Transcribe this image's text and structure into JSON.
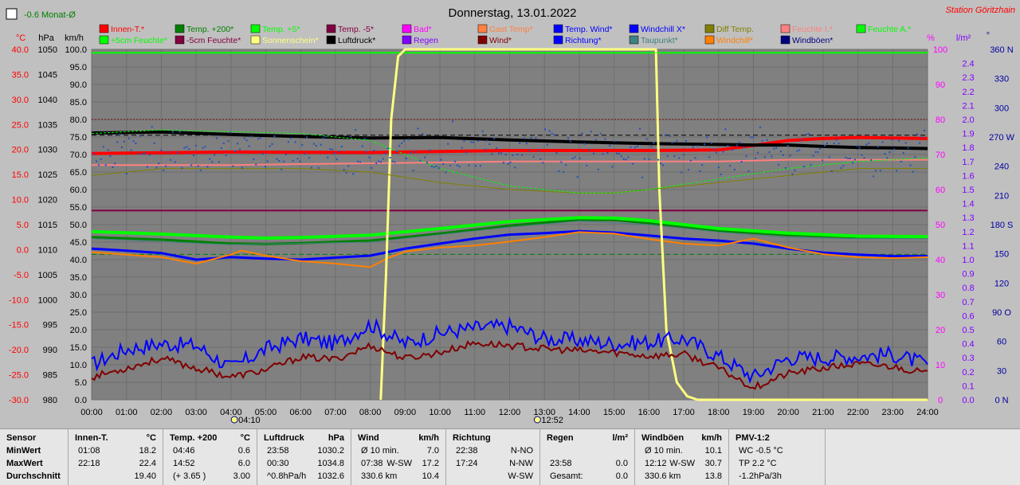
{
  "title": "Donnerstag, 13.01.2022",
  "station": "Station Göritzhain",
  "trend": "-0.6 Monat-Ø",
  "units": {
    "c": "°C",
    "hpa": "hPa",
    "kmh": "km/h",
    "pct": "%",
    "lm2": "l/m²",
    "deg": "°"
  },
  "legend": [
    [
      {
        "name": "Innen-T.*",
        "color": "#ff0000"
      },
      {
        "name": "Temp. +200*",
        "color": "#008000"
      },
      {
        "name": "Temp. +5*",
        "color": "#00ff00"
      },
      {
        "name": "Temp. -5*",
        "color": "#800040"
      },
      {
        "name": "Bad*",
        "color": "#ff00ff"
      },
      {
        "name": "Gast Temp*",
        "color": "#ff8040"
      },
      {
        "name": "Temp. Wind*",
        "color": "#0000ff"
      },
      {
        "name": "Windchill X*",
        "color": "#0000ff"
      },
      {
        "name": "Diff Temp.",
        "color": "#808000"
      },
      {
        "name": "Feuchte I.*",
        "color": "#ff8080"
      },
      {
        "name": "Feuchte A.*",
        "color": "#00ff00"
      }
    ],
    [
      {
        "name": "+5cm Feuchte*",
        "color": "#00ff00"
      },
      {
        "name": "-5cm Feuchte*",
        "color": "#800040"
      },
      {
        "name": "Sonnenschein*",
        "color": "#ffff80"
      },
      {
        "name": "Luftdruck*",
        "color": "#000000"
      },
      {
        "name": "Regen",
        "color": "#8000ff"
      },
      {
        "name": "Wind*",
        "color": "#800000"
      },
      {
        "name": "Richtung*",
        "color": "#0000ff"
      },
      {
        "name": "Taupunkt*",
        "color": "#408080"
      },
      {
        "name": "Windchill*",
        "color": "#ff8000"
      },
      {
        "name": "Windböen*",
        "color": "#000080"
      }
    ]
  ],
  "chart_data": {
    "type": "line",
    "title": "Donnerstag, 13.01.2022",
    "x_ticks": [
      "00:00",
      "01:00",
      "02:00",
      "03:00",
      "04:00",
      "05:00",
      "06:00",
      "07:00",
      "08:00",
      "09:00",
      "10:00",
      "11:00",
      "12:00",
      "13:00",
      "14:00",
      "15:00",
      "16:00",
      "17:00",
      "18:00",
      "19:00",
      "20:00",
      "21:00",
      "22:00",
      "23:00",
      "24:00"
    ],
    "x_markers": [
      "04:10",
      "12:52"
    ],
    "axes": {
      "temp_c": {
        "color": "#ff0000",
        "range": [
          -30,
          40
        ],
        "ticks": [
          "40.0",
          "35.0",
          "30.0",
          "25.0",
          "20.0",
          "15.0",
          "10.0",
          "5.0",
          "0.0",
          "-5.0",
          "-10.0",
          "-15.0",
          "-20.0",
          "-25.0",
          "-30.0"
        ]
      },
      "pressure_hpa": {
        "color": "#000000",
        "range": [
          980,
          1050
        ],
        "ticks": [
          "1050",
          "1045",
          "1040",
          "1035",
          "1030",
          "1025",
          "1020",
          "1015",
          "1010",
          "1005",
          "1000",
          "995",
          "990",
          "985",
          "980"
        ]
      },
      "wind_kmh": {
        "color": "#000000",
        "range": [
          0,
          100
        ],
        "ticks": [
          "100.0",
          "95.0",
          "90.0",
          "85.0",
          "80.0",
          "75.0",
          "70.0",
          "65.0",
          "60.0",
          "55.0",
          "50.0",
          "45.0",
          "40.0",
          "35.0",
          "30.0",
          "25.0",
          "20.0",
          "15.0",
          "10.0",
          "5.0",
          "0.0"
        ]
      },
      "humidity_pct": {
        "color": "#ff00ff",
        "range": [
          0,
          100
        ],
        "ticks": [
          "100",
          "90",
          "80",
          "70",
          "60",
          "50",
          "40",
          "30",
          "20",
          "10",
          "0"
        ]
      },
      "rain_lm2": {
        "color": "#8000ff",
        "range": [
          0,
          2.5
        ],
        "ticks": [
          "2.4",
          "2.3",
          "2.2",
          "2.1",
          "2.0",
          "1.9",
          "1.8",
          "1.7",
          "1.6",
          "1.5",
          "1.4",
          "1.3",
          "1.2",
          "1.1",
          "1.0",
          "0.9",
          "0.8",
          "0.7",
          "0.6",
          "0.5",
          "0.4",
          "0.3",
          "0.2",
          "0.1",
          "0.0"
        ]
      },
      "direction_deg": {
        "color": "#0000a0",
        "range": [
          0,
          360
        ],
        "ticks": [
          "360 N",
          "330",
          "300",
          "270 W",
          "240",
          "210",
          "180 S",
          "150",
          "120",
          "90 O",
          "60",
          "30",
          "0 N"
        ]
      }
    },
    "series": [
      {
        "name": "Innen-T.*",
        "axis": "temp_c",
        "color": "#ff0000",
        "width": 4,
        "x": [
          0,
          4,
          8,
          12,
          16,
          18,
          19,
          20,
          21,
          22,
          24
        ],
        "y": [
          19.2,
          19.5,
          19.4,
          19.8,
          19.8,
          19.9,
          20.8,
          21.8,
          22.2,
          22.4,
          22.2
        ]
      },
      {
        "name": "Temp. +200*",
        "axis": "temp_c",
        "color": "#008000",
        "width": 3,
        "x": [
          0,
          2,
          4,
          5,
          6,
          8,
          10,
          12,
          14,
          15,
          16,
          17,
          18,
          20,
          22,
          24
        ],
        "y": [
          2.5,
          2.0,
          1.2,
          1.1,
          1.3,
          1.8,
          3.2,
          4.8,
          6.0,
          5.9,
          5.3,
          4.6,
          3.8,
          2.9,
          2.5,
          2.5
        ]
      },
      {
        "name": "Temp. +5*",
        "axis": "temp_c",
        "color": "#00ff00",
        "width": 4,
        "x": [
          0,
          2,
          4,
          5,
          6,
          8,
          10,
          12,
          14,
          15,
          16,
          17,
          18,
          20,
          22,
          24
        ],
        "y": [
          3.6,
          3.1,
          2.5,
          2.3,
          2.4,
          2.9,
          4.2,
          5.6,
          6.4,
          6.3,
          5.8,
          5.0,
          4.2,
          3.3,
          2.7,
          2.6
        ]
      },
      {
        "name": "Temp. Wind*",
        "axis": "temp_c",
        "color": "#0000ff",
        "width": 3,
        "x": [
          0,
          1,
          2,
          3,
          4,
          5,
          6,
          7,
          8,
          9,
          10,
          11,
          12,
          13,
          14,
          15,
          16,
          17,
          18,
          19,
          20,
          21,
          22,
          23,
          24
        ],
        "y": [
          0.2,
          -0.2,
          -0.7,
          -2.0,
          -1.5,
          -1.8,
          -2.0,
          -1.6,
          -1.2,
          0.2,
          1.2,
          2.2,
          3.0,
          3.3,
          3.7,
          3.4,
          2.8,
          2.2,
          1.8,
          1.2,
          0.2,
          -0.6,
          -1.0,
          -1.3,
          -1.3
        ]
      },
      {
        "name": "Windchill*",
        "axis": "temp_c",
        "color": "#ff8000",
        "width": 2,
        "x": [
          0,
          1,
          2,
          3,
          4,
          4.3,
          5,
          6,
          7,
          8,
          8.5,
          9,
          10,
          11,
          12,
          13,
          14,
          15,
          16,
          17,
          18,
          19,
          20,
          21,
          22,
          23,
          24
        ],
        "y": [
          -0.5,
          -1.0,
          -1.5,
          -2.8,
          -1.0,
          -0.2,
          -1.2,
          -2.3,
          -2.8,
          -3.5,
          -1.7,
          -0.4,
          0.4,
          0.8,
          1.6,
          2.5,
          3.5,
          3.2,
          2.1,
          1.2,
          0.8,
          2.2,
          0.4,
          -0.9,
          -1.5,
          -1.7,
          -1.5
        ]
      },
      {
        "name": "Taupunkt*",
        "axis": "temp_c",
        "color": "#408080",
        "width": 1,
        "x": [
          0,
          4,
          8,
          12,
          14,
          16,
          18,
          20,
          22,
          24
        ],
        "y": [
          2.2,
          1.0,
          1.5,
          4.5,
          5.7,
          5.0,
          3.5,
          2.4,
          2.2,
          2.2
        ]
      },
      {
        "name": "Feuchte I.*",
        "axis": "humidity_pct",
        "color": "#ff8080",
        "width": 2,
        "x": [
          0,
          4,
          8,
          12,
          16,
          18,
          20,
          22,
          24
        ],
        "y": [
          67,
          67,
          67.5,
          68,
          68,
          68,
          68.5,
          68.5,
          68.5
        ]
      },
      {
        "name": "Luftdruck*",
        "axis": "pressure_hpa",
        "color": "#000000",
        "width": 4,
        "x": [
          0,
          2,
          4,
          6,
          8,
          10,
          12,
          14,
          16,
          18,
          19,
          20,
          21,
          22,
          23,
          24
        ],
        "y": [
          1033.3,
          1033.5,
          1033.0,
          1032.6,
          1032.3,
          1032.4,
          1031.9,
          1031.5,
          1031.2,
          1031.0,
          1030.9,
          1030.9,
          1030.6,
          1030.4,
          1030.3,
          1030.2
        ]
      },
      {
        "name": "Sonnenschein*",
        "axis": "wind_kmh",
        "color": "#ffff80",
        "width": 3,
        "x": [
          8.3,
          8.45,
          8.6,
          8.8,
          9.0,
          16.2,
          16.3,
          16.5,
          16.8,
          17.1,
          17.4,
          24
        ],
        "y": [
          0,
          35,
          80,
          98,
          100,
          100,
          60,
          20,
          5,
          1,
          0,
          0
        ]
      },
      {
        "name": "Diff Temp.",
        "axis": "humidity_pct",
        "color": "#808000",
        "width": 1,
        "x": [
          0,
          2,
          4,
          6,
          8,
          10,
          12,
          14,
          15,
          16,
          18,
          20,
          22,
          24
        ],
        "y": [
          64,
          66,
          66,
          66,
          65,
          62,
          60,
          59,
          59,
          60,
          62,
          64,
          66,
          66
        ]
      },
      {
        "name": "Feuchte A.*",
        "axis": "humidity_pct",
        "color": "#00ff00",
        "width": 1,
        "dash": "3,2",
        "x": [
          0,
          2,
          4,
          6,
          8,
          9,
          10,
          12,
          14,
          15,
          16,
          18,
          20,
          22,
          24
        ],
        "y": [
          76,
          77,
          76.5,
          76,
          74,
          70,
          66,
          61,
          59,
          59,
          60,
          63,
          66,
          68,
          69
        ]
      }
    ],
    "dots": {
      "name": "Richtung*",
      "axis": "direction_deg",
      "color": "#2050c0",
      "base": 255,
      "spread": 18
    },
    "wind": {
      "name": "Wind*",
      "axis": "wind_kmh",
      "color": "#800000",
      "x": [
        0,
        1,
        2,
        3,
        4,
        5,
        6,
        7,
        8,
        9,
        10,
        11,
        12,
        13,
        14,
        15,
        16,
        17,
        18,
        19,
        20,
        21,
        22,
        23,
        24
      ],
      "y": [
        6.5,
        9.0,
        11.8,
        9.0,
        6.5,
        8.5,
        12.2,
        11.5,
        15.5,
        11.8,
        13.5,
        16.2,
        15.5,
        14.5,
        14.0,
        13.5,
        12.5,
        13.0,
        9.0,
        3.5,
        7.5,
        9.0,
        10.2,
        9.5,
        7.5
      ]
    },
    "gusts": {
      "name": "Windböen*",
      "axis": "wind_kmh",
      "color": "#0000ff",
      "x": [
        0,
        1,
        2,
        3,
        4,
        5,
        6,
        7,
        8,
        9,
        10,
        11,
        12,
        13,
        14,
        15,
        16,
        17,
        18,
        19,
        20,
        21,
        22,
        23,
        24
      ],
      "y": [
        10.0,
        14.5,
        16.0,
        15.5,
        9.0,
        14.5,
        17.5,
        16.0,
        21.5,
        16.0,
        19.0,
        20.5,
        21.0,
        17.5,
        17.0,
        16.0,
        16.5,
        17.5,
        12.5,
        6.5,
        12.0,
        12.0,
        12.5,
        13.0,
        10.0
      ]
    },
    "hlines": [
      {
        "axis": "wind_kmh",
        "y": 99,
        "color": "#00ff00",
        "width": 2
      },
      {
        "axis": "wind_kmh",
        "y": 80,
        "color": "#800000",
        "dash": "2,2",
        "width": 1
      },
      {
        "axis": "wind_kmh",
        "y": 54,
        "color": "#800040",
        "width": 2
      },
      {
        "axis": "wind_kmh",
        "y": 75.5,
        "color": "#000000",
        "dash": "6,4",
        "width": 1
      },
      {
        "axis": "wind_kmh",
        "y": 41.5,
        "color": "#008000",
        "dash": "6,4",
        "width": 1
      }
    ],
    "grid": true
  },
  "stats": {
    "sensor": {
      "title": "Sensor",
      "min": "MinWert",
      "max": "MaxWert",
      "avg": "Durchschnitt"
    },
    "groups": [
      {
        "title": "Innen-T.",
        "unit": "°C",
        "rows": [
          [
            "01:08",
            "",
            "18.2"
          ],
          [
            "22:18",
            "",
            "22.4"
          ],
          [
            "",
            "",
            "19.40"
          ]
        ]
      },
      {
        "title": "Temp. +200",
        "unit": "°C",
        "rows": [
          [
            "04:46",
            "",
            "0.6"
          ],
          [
            "14:52",
            "",
            "6.0"
          ],
          [
            "(+ 3.65 )",
            "",
            "3.00"
          ]
        ]
      },
      {
        "title": "Luftdruck",
        "unit": "hPa",
        "rows": [
          [
            "23:58",
            "",
            "1030.2"
          ],
          [
            "00:30",
            "",
            "1034.8"
          ],
          [
            "^0.8hPa/h",
            "",
            "1032.6"
          ]
        ]
      },
      {
        "title": "Wind",
        "unit": "km/h",
        "rows": [
          [
            "Ø 10 min.",
            "",
            "7.0"
          ],
          [
            "07:38",
            "W-SW",
            "17.2"
          ],
          [
            "330.6 km",
            "",
            "10.4"
          ]
        ]
      },
      {
        "title": "Richtung",
        "unit": "",
        "rows": [
          [
            "22:38",
            "",
            "N-NO"
          ],
          [
            "17:24",
            "",
            "N-NW"
          ],
          [
            "",
            "",
            "W-SW"
          ]
        ]
      },
      {
        "title": "Regen",
        "unit": "l/m²",
        "rows": [
          [
            "",
            "",
            ""
          ],
          [
            "23:58",
            "",
            "0.0"
          ],
          [
            "Gesamt:",
            "",
            "0.0"
          ]
        ]
      },
      {
        "title": "Windböen",
        "unit": "km/h",
        "rows": [
          [
            "Ø 10 min.",
            "",
            "10.1"
          ],
          [
            "12:12",
            "W-SW",
            "30.7"
          ],
          [
            "330.6 km",
            "",
            "13.8"
          ]
        ]
      },
      {
        "title": "PMV-1:2",
        "unit": "",
        "rows": [
          [
            "WC -0.5 °C",
            "",
            ""
          ],
          [
            "TP 2.2 °C",
            "",
            ""
          ],
          [
            "-1.2hPa/3h",
            "",
            ""
          ]
        ]
      }
    ]
  }
}
